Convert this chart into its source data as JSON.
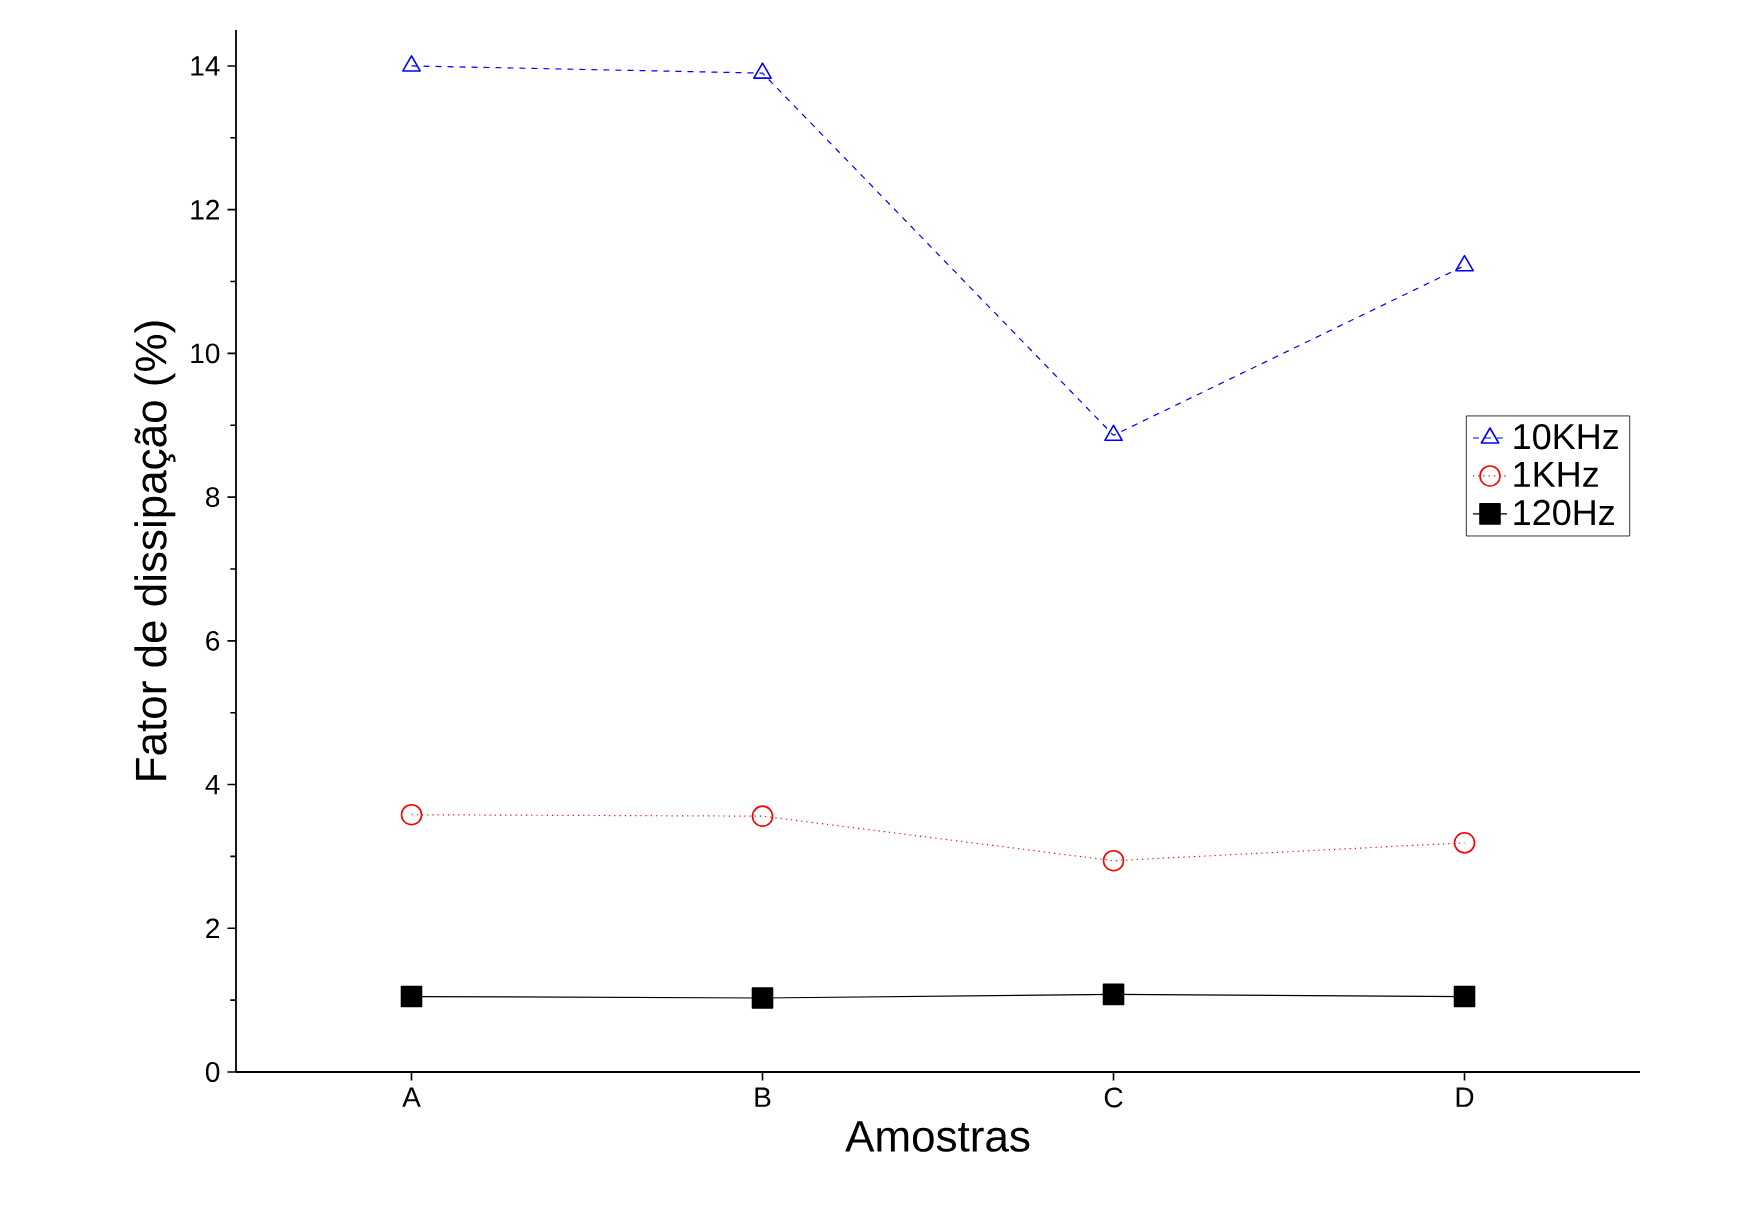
{
  "chart_data": {
    "type": "line",
    "xlabel": "Amostras",
    "ylabel": "Fator de dissipação (%)",
    "categories": [
      "A",
      "B",
      "C",
      "D"
    ],
    "ylim": [
      0,
      14.5
    ],
    "yticks": [
      0,
      2,
      4,
      6,
      8,
      10,
      12,
      14
    ],
    "legend": "right",
    "grid": false,
    "series": [
      {
        "name": "10KHz",
        "color": "#0000ff",
        "marker": "triangle",
        "line_style": "dashed",
        "values": [
          14.0,
          13.9,
          8.86,
          11.22
        ]
      },
      {
        "name": "1KHz",
        "color": "#ff0000",
        "marker": "circle",
        "line_style": "dotted",
        "values": [
          3.58,
          3.56,
          2.94,
          3.19
        ]
      },
      {
        "name": "120Hz",
        "color": "#000000",
        "marker": "square",
        "line_style": "solid",
        "values": [
          1.05,
          1.03,
          1.08,
          1.05
        ]
      }
    ]
  }
}
